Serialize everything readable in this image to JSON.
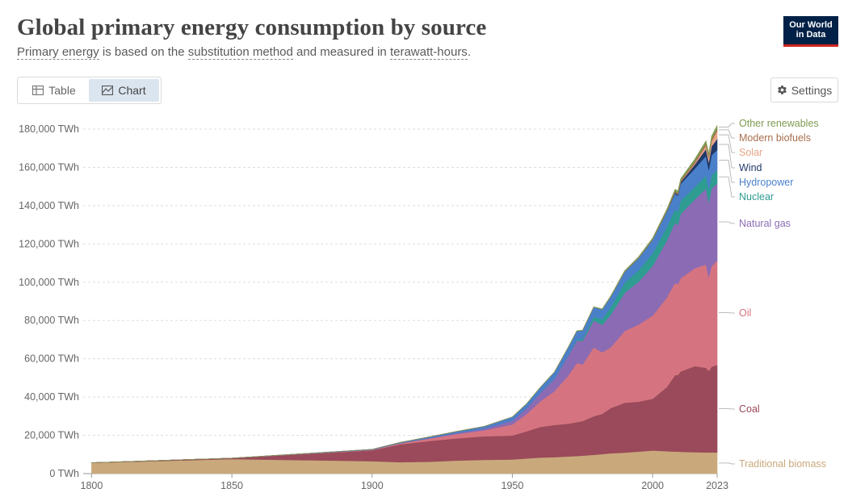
{
  "header": {
    "title": "Global primary energy consumption by source",
    "subtitle": {
      "link1": "Primary energy",
      "text1": " is based on the ",
      "link2": "substitution method",
      "text2": " and measured in ",
      "link3": "terawatt-hours",
      "text3": "."
    },
    "logo": {
      "line1": "Our World",
      "line2": "in Data"
    }
  },
  "tabs": [
    {
      "label": "Table",
      "icon": "table-icon",
      "active": false
    },
    {
      "label": "Chart",
      "icon": "chart-icon",
      "active": true
    }
  ],
  "settings": {
    "label": "Settings",
    "icon": "gear-icon"
  },
  "chart_data": {
    "type": "area",
    "stacked": true,
    "grid": "horizontal-dashed",
    "xlim": [
      1797,
      2023
    ],
    "ylim": [
      0,
      180000
    ],
    "x_ticks": [
      1800,
      1850,
      1900,
      1950,
      2000,
      2023
    ],
    "y_ticks": [
      0,
      20000,
      40000,
      60000,
      80000,
      100000,
      120000,
      140000,
      160000,
      180000
    ],
    "y_tick_labels": [
      "0 TWh",
      "20,000 TWh",
      "40,000 TWh",
      "60,000 TWh",
      "80,000 TWh",
      "100,000 TWh",
      "120,000 TWh",
      "140,000 TWh",
      "160,000 TWh",
      "180,000 TWh"
    ],
    "x": [
      1800,
      1850,
      1900,
      1910,
      1920,
      1930,
      1940,
      1950,
      1955,
      1960,
      1965,
      1970,
      1973,
      1975,
      1979,
      1982,
      1985,
      1990,
      1995,
      2000,
      2005,
      2008,
      2009,
      2010,
      2015,
      2019,
      2020,
      2021,
      2023
    ],
    "series": [
      {
        "name": "Traditional biomass",
        "color": "#c9a97c",
        "values": [
          5600,
          7600,
          6500,
          6000,
          6200,
          6800,
          7200,
          7400,
          7900,
          8400,
          8600,
          9000,
          9200,
          9400,
          9800,
          10200,
          10600,
          11000,
          11500,
          12100,
          11700,
          11500,
          11500,
          11400,
          11200,
          11100,
          11100,
          11100,
          11100
        ]
      },
      {
        "name": "Coal",
        "color": "#9a4a5a",
        "values": [
          100,
          500,
          5700,
          9300,
          10800,
          11600,
          12300,
          12500,
          14200,
          16000,
          16800,
          17100,
          17700,
          18000,
          20200,
          21000,
          23600,
          26000,
          26100,
          27000,
          33500,
          40000,
          40000,
          42000,
          45000,
          44200,
          42600,
          44700,
          45700
        ]
      },
      {
        "name": "Oil",
        "color": "#d57480",
        "values": [
          0,
          0,
          200,
          500,
          1200,
          2200,
          3100,
          5800,
          9000,
          13400,
          17700,
          25300,
          30900,
          29600,
          36000,
          32200,
          31700,
          37500,
          40300,
          43500,
          46700,
          48200,
          47400,
          48700,
          51100,
          54000,
          49000,
          52500,
          54600
        ]
      },
      {
        "name": "Natural gas",
        "color": "#8b6bb4",
        "values": [
          0,
          0,
          100,
          200,
          300,
          600,
          900,
          2100,
          3000,
          4500,
          6400,
          10400,
          11800,
          12300,
          14000,
          14400,
          17000,
          19900,
          22400,
          25900,
          29800,
          31500,
          31000,
          33600,
          35900,
          39600,
          38900,
          40700,
          40200
        ]
      },
      {
        "name": "Nuclear",
        "color": "#2f9c92",
        "values": [
          0,
          0,
          0,
          0,
          0,
          0,
          0,
          0,
          0,
          30,
          100,
          250,
          600,
          1000,
          2000,
          2800,
          4000,
          5300,
          6000,
          6600,
          7100,
          7000,
          6900,
          7000,
          6500,
          6900,
          6600,
          6900,
          6800
        ]
      },
      {
        "name": "Hydropower",
        "color": "#4a7fca",
        "values": [
          0,
          0,
          200,
          300,
          600,
          800,
          1200,
          1800,
          2300,
          2800,
          3500,
          4200,
          4400,
          4500,
          5000,
          5200,
          5400,
          5700,
          6300,
          7100,
          7800,
          8300,
          8400,
          8700,
          9600,
          10200,
          10500,
          10500,
          10700
        ]
      },
      {
        "name": "Wind",
        "color": "#1f3a6a",
        "values": [
          0,
          0,
          0,
          0,
          0,
          0,
          0,
          0,
          0,
          0,
          0,
          0,
          0,
          0,
          0,
          0,
          0,
          10,
          30,
          80,
          260,
          550,
          680,
          900,
          2200,
          3600,
          4000,
          4600,
          5800
        ]
      },
      {
        "name": "Solar",
        "color": "#e8a487",
        "values": [
          0,
          0,
          0,
          0,
          0,
          0,
          0,
          0,
          0,
          0,
          0,
          0,
          0,
          0,
          0,
          0,
          0,
          1,
          2,
          3,
          10,
          30,
          50,
          80,
          680,
          1800,
          2200,
          2700,
          4200
        ]
      },
      {
        "name": "Modern biofuels",
        "color": "#a96e4d",
        "values": [
          0,
          0,
          0,
          0,
          0,
          0,
          0,
          0,
          0,
          0,
          0,
          0,
          0,
          0,
          0,
          50,
          100,
          160,
          180,
          200,
          350,
          600,
          650,
          720,
          850,
          1000,
          950,
          1050,
          1100
        ]
      },
      {
        "name": "Other renewables",
        "color": "#7f9b52",
        "values": [
          0,
          0,
          0,
          0,
          0,
          0,
          0,
          0,
          0,
          50,
          80,
          100,
          120,
          140,
          180,
          250,
          330,
          450,
          550,
          650,
          800,
          950,
          1000,
          1050,
          1250,
          1450,
          1500,
          1550,
          1700
        ]
      }
    ]
  }
}
